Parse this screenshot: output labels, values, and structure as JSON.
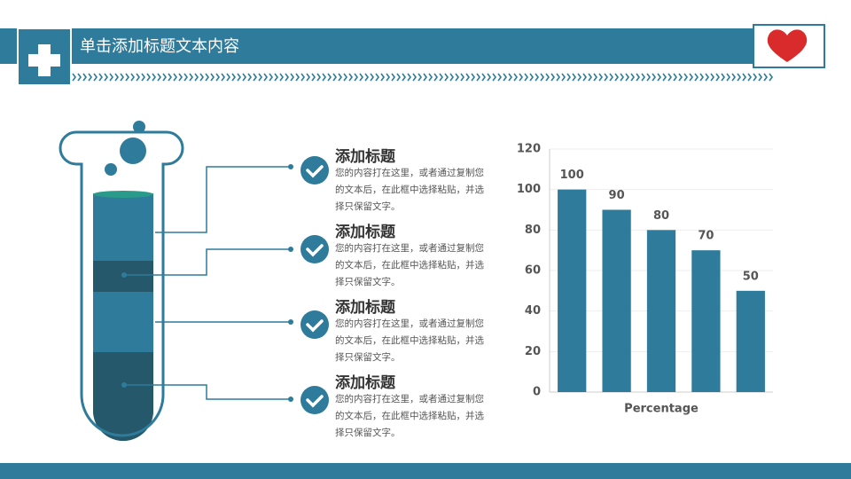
{
  "header": {
    "title": "单击添加标题文本内容"
  },
  "items": [
    {
      "title": "添加标题",
      "text": "您的内容打在这里，或者通过复制您的文本后，在此框中选择粘贴，并选择只保留文字。"
    },
    {
      "title": "添加标题",
      "text": "您的内容打在这里，或者通过复制您的文本后，在此框中选择粘贴，并选择只保留文字。"
    },
    {
      "title": "添加标题",
      "text": "您的内容打在这里，或者通过复制您的文本后，在此框中选择粘贴，并选择只保留文字。"
    },
    {
      "title": "添加标题",
      "text": "您的内容打在这里，或者通过复制您的文本后，在此框中选择粘贴，并选择只保留文字。"
    }
  ],
  "chart_data": {
    "type": "bar",
    "x_label": "Percentage",
    "categories": [
      null,
      null,
      null,
      null,
      null
    ],
    "values": [
      100,
      90,
      80,
      70,
      50
    ],
    "color": "#2e7b9b",
    "ylim": [
      0,
      120
    ],
    "yticks": [
      0,
      20,
      40,
      60,
      80,
      100,
      120
    ],
    "grid": true
  }
}
